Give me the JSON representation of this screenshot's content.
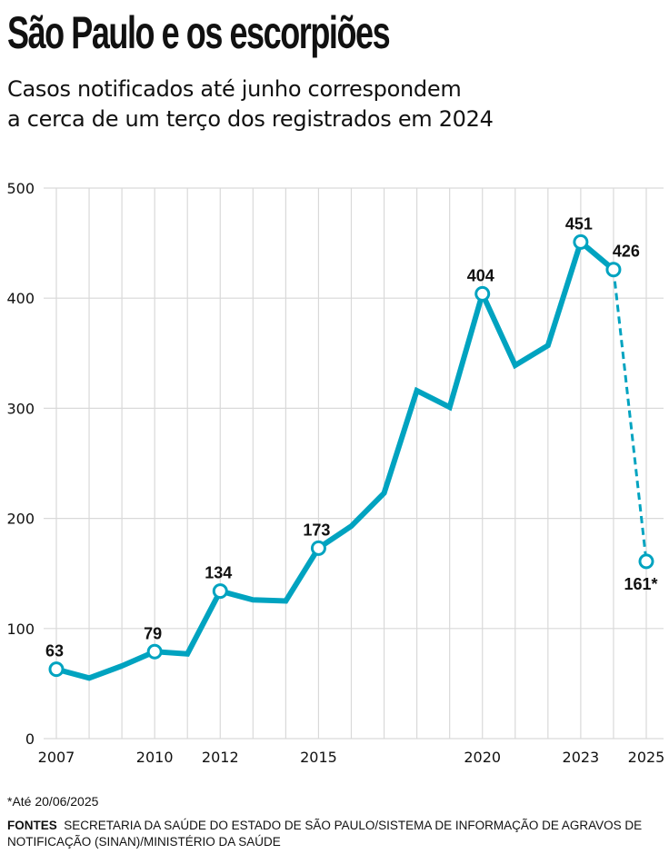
{
  "header": {
    "title": "São Paulo e os escorpiões",
    "subtitle_lines": [
      "Casos notificados até junho correspondem",
      "a cerca de um terço dos registrados em 2024"
    ]
  },
  "footer": {
    "footnote": "*Até 20/06/2025",
    "sources_label": "FONTES",
    "sources_text": "SECRETARIA DA SAÚDE DO ESTADO DE SÃO PAULO/SISTEMA DE INFORMAÇÃO DE AGRAVOS DE NOTIFICAÇÃO (SINAN)/MINISTÉRIO DA SAÚDE"
  },
  "colors": {
    "line": "#00a3c0",
    "grid": "#d9d9d9",
    "text": "#111111"
  },
  "chart_data": {
    "type": "line",
    "title": "São Paulo e os escorpiões",
    "xlabel": "",
    "ylabel": "",
    "x": [
      2007,
      2008,
      2009,
      2010,
      2011,
      2012,
      2013,
      2014,
      2015,
      2016,
      2017,
      2018,
      2019,
      2020,
      2021,
      2022,
      2023,
      2024,
      2025
    ],
    "series": [
      {
        "name": "Casos notificados",
        "values": [
          63,
          55,
          66,
          79,
          77,
          134,
          126,
          125,
          173,
          193,
          223,
          316,
          301,
          404,
          339,
          357,
          451,
          426,
          161
        ],
        "partial_last_point": true,
        "partial_note": "*Até 20/06/2025"
      }
    ],
    "labeled_points": [
      {
        "x": 2007,
        "label": "63",
        "position": "above"
      },
      {
        "x": 2010,
        "label": "79",
        "position": "above"
      },
      {
        "x": 2012,
        "label": "134",
        "position": "above"
      },
      {
        "x": 2015,
        "label": "173",
        "position": "above"
      },
      {
        "x": 2020,
        "label": "404",
        "position": "above"
      },
      {
        "x": 2023,
        "label": "451",
        "position": "above"
      },
      {
        "x": 2024,
        "label": "426",
        "position": "above-right"
      },
      {
        "x": 2025,
        "label": "161*",
        "position": "below"
      }
    ],
    "x_ticks": [
      2007,
      2010,
      2012,
      2015,
      2020,
      2023,
      2025
    ],
    "y_ticks": [
      0,
      100,
      200,
      300,
      400,
      500
    ],
    "xlim": [
      2007,
      2025
    ],
    "ylim": [
      0,
      500
    ],
    "grid": true
  }
}
